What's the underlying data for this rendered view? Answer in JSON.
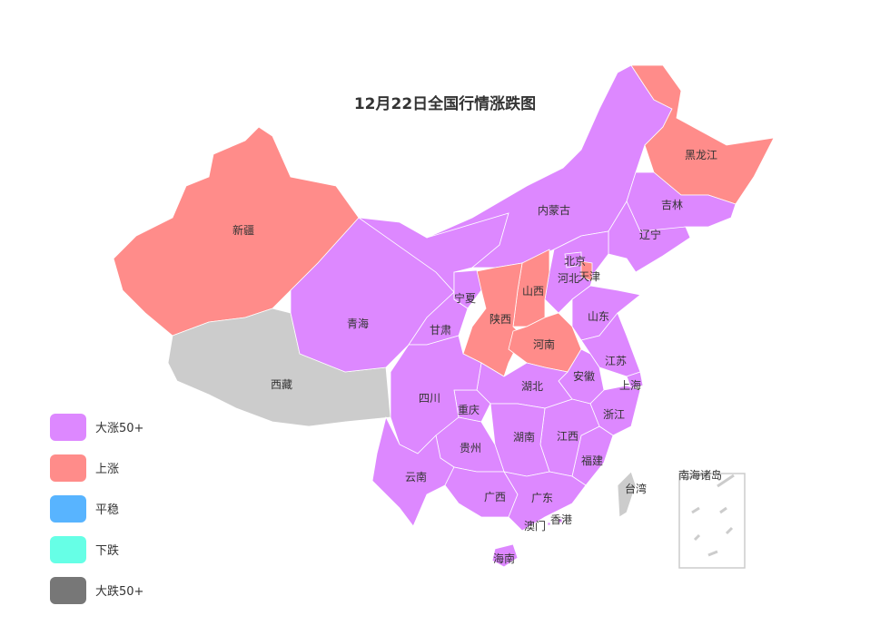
{
  "title": "12月22日全国行情涨跌图",
  "legend": [
    {
      "label": "大涨50+",
      "color": "#DD88FF"
    },
    {
      "label": "上涨",
      "color": "#FF8C8A"
    },
    {
      "label": "平稳",
      "color": "#58B4FF"
    },
    {
      "label": "下跌",
      "color": "#66FFE6"
    },
    {
      "label": "大跌50+",
      "color": "#777777"
    }
  ],
  "no_data_color": "#CCCCCC",
  "provinces": [
    {
      "name": "新疆",
      "category": "上涨"
    },
    {
      "name": "西藏",
      "category": null
    },
    {
      "name": "青海",
      "category": "大涨50+"
    },
    {
      "name": "甘肃",
      "category": "大涨50+"
    },
    {
      "name": "内蒙古",
      "category": "大涨50+"
    },
    {
      "name": "黑龙江",
      "category": "上涨"
    },
    {
      "name": "吉林",
      "category": "大涨50+"
    },
    {
      "name": "辽宁",
      "category": "大涨50+"
    },
    {
      "name": "河北",
      "category": "大涨50+"
    },
    {
      "name": "北京",
      "category": "大涨50+"
    },
    {
      "name": "天津",
      "category": "上涨"
    },
    {
      "name": "山西",
      "category": "上涨"
    },
    {
      "name": "陕西",
      "category": "上涨"
    },
    {
      "name": "宁夏",
      "category": "大涨50+"
    },
    {
      "name": "河南",
      "category": "上涨"
    },
    {
      "name": "山东",
      "category": "大涨50+"
    },
    {
      "name": "江苏",
      "category": "大涨50+"
    },
    {
      "name": "安徽",
      "category": "大涨50+"
    },
    {
      "name": "上海",
      "category": "大涨50+"
    },
    {
      "name": "浙江",
      "category": "大涨50+"
    },
    {
      "name": "福建",
      "category": "大涨50+"
    },
    {
      "name": "江西",
      "category": "大涨50+"
    },
    {
      "name": "湖北",
      "category": "大涨50+"
    },
    {
      "name": "湖南",
      "category": "大涨50+"
    },
    {
      "name": "重庆",
      "category": "大涨50+"
    },
    {
      "name": "四川",
      "category": "大涨50+"
    },
    {
      "name": "贵州",
      "category": "大涨50+"
    },
    {
      "name": "云南",
      "category": "大涨50+"
    },
    {
      "name": "广西",
      "category": "大涨50+"
    },
    {
      "name": "广东",
      "category": "大涨50+"
    },
    {
      "name": "海南",
      "category": "大涨50+"
    },
    {
      "name": "台湾",
      "category": null
    },
    {
      "name": "香港",
      "category": "大涨50+"
    },
    {
      "name": "澳门",
      "category": "大涨50+"
    },
    {
      "name": "南海诸岛",
      "category": null
    }
  ]
}
